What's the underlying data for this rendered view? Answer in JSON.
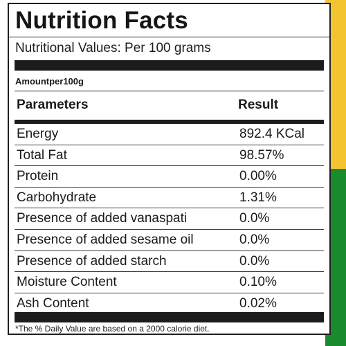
{
  "label": {
    "title": "Nutrition Facts",
    "subtitle": "Nutritional Values: Per 100 grams",
    "amount_label": "Amountper100g",
    "columns": {
      "parameter": "Parameters",
      "result": "Result"
    },
    "rows": [
      {
        "parameter": "Energy",
        "result": "892.4 KCal"
      },
      {
        "parameter": "Total Fat",
        "result": "98.57%"
      },
      {
        "parameter": "Protein",
        "result": "0.00%"
      },
      {
        "parameter": "Carbohydrate",
        "result": "1.31%"
      },
      {
        "parameter": "Presence of added vanaspati",
        "result": "0.0%"
      },
      {
        "parameter": "Presence of added sesame oil",
        "result": "0.0%"
      },
      {
        "parameter": "Presence of added starch",
        "result": "0.0%"
      },
      {
        "parameter": "Moisture Content",
        "result": "0.10%"
      },
      {
        "parameter": "Ash Content",
        "result": "0.02%"
      }
    ],
    "footnote": "*The % Daily Value are based on a 2000 calorie diet."
  },
  "colors": {
    "background_top": "#f4c430",
    "background_bottom": "#1a8a2e",
    "rule": "#1c1c1c"
  }
}
